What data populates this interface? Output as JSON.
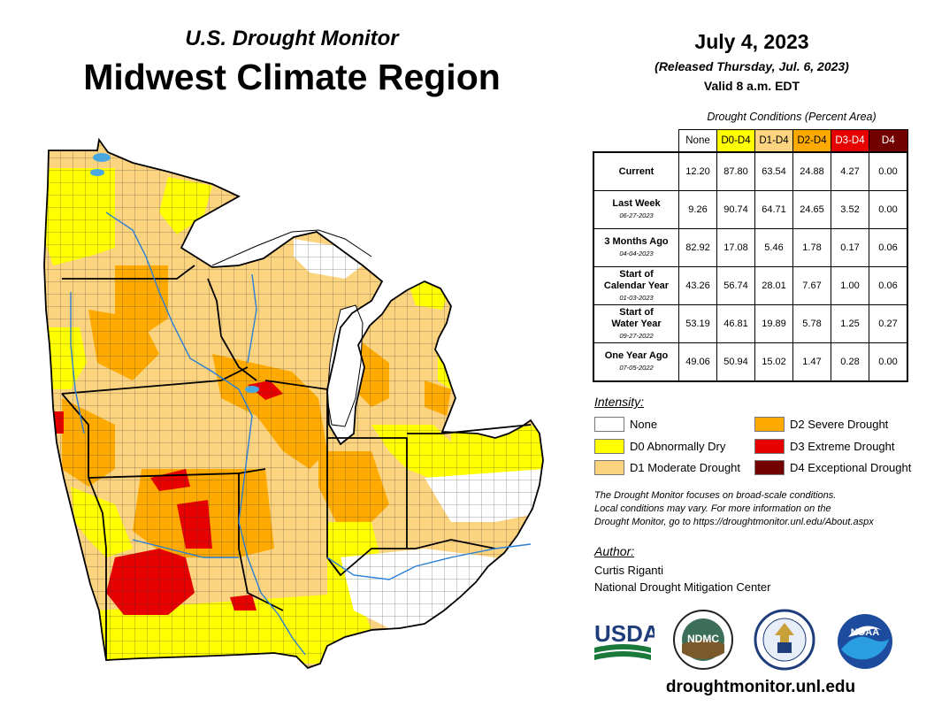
{
  "header": {
    "subtitle": "U.S. Drought Monitor",
    "title": "Midwest Climate Region",
    "date": "July 4, 2023",
    "released": "(Released Thursday, Jul. 6, 2023)",
    "valid": "Valid 8 a.m. EDT"
  },
  "table": {
    "caption": "Drought Conditions (Percent Area)",
    "columns": [
      {
        "label": "None",
        "color": "#ffffff",
        "text_color": "#000000"
      },
      {
        "label": "D0-D4",
        "color": "#ffff00",
        "text_color": "#000000"
      },
      {
        "label": "D1-D4",
        "color": "#fcd37f",
        "text_color": "#000000"
      },
      {
        "label": "D2-D4",
        "color": "#ffaa00",
        "text_color": "#000000"
      },
      {
        "label": "D3-D4",
        "color": "#e60000",
        "text_color": "#ffffff"
      },
      {
        "label": "D4",
        "color": "#730000",
        "text_color": "#ffffff"
      }
    ],
    "rows": [
      {
        "label": "Current",
        "label2": "",
        "date": "",
        "values": [
          "12.20",
          "87.80",
          "63.54",
          "24.88",
          "4.27",
          "0.00"
        ]
      },
      {
        "label": "Last Week",
        "label2": "",
        "date": "06-27-2023",
        "values": [
          "9.26",
          "90.74",
          "64.71",
          "24.65",
          "3.52",
          "0.00"
        ]
      },
      {
        "label": "3 Months Ago",
        "label2": "",
        "date": "04-04-2023",
        "values": [
          "82.92",
          "17.08",
          "5.46",
          "1.78",
          "0.17",
          "0.06"
        ]
      },
      {
        "label": "Start of",
        "label2": "Calendar Year",
        "date": "01-03-2023",
        "values": [
          "43.26",
          "56.74",
          "28.01",
          "7.67",
          "1.00",
          "0.06"
        ]
      },
      {
        "label": "Start of",
        "label2": "Water Year",
        "date": "09-27-2022",
        "values": [
          "53.19",
          "46.81",
          "19.89",
          "5.78",
          "1.25",
          "0.27"
        ]
      },
      {
        "label": "One Year Ago",
        "label2": "",
        "date": "07-05-2022",
        "values": [
          "49.06",
          "50.94",
          "15.02",
          "1.47",
          "0.28",
          "0.00"
        ]
      }
    ]
  },
  "legend": {
    "title": "Intensity:",
    "items": [
      {
        "label": "None",
        "color": "#ffffff"
      },
      {
        "label": "D0 Abnormally Dry",
        "color": "#ffff00"
      },
      {
        "label": "D1 Moderate Drought",
        "color": "#fcd37f"
      },
      {
        "label": "D2 Severe Drought",
        "color": "#ffaa00"
      },
      {
        "label": "D3 Extreme Drought",
        "color": "#e60000"
      },
      {
        "label": "D4 Exceptional Drought",
        "color": "#730000"
      }
    ]
  },
  "note": {
    "line1": "The Drought Monitor focuses on broad-scale conditions.",
    "line2": "Local conditions may vary. For more information on the",
    "line3": "Drought Monitor, go to https://droughtmonitor.unl.edu/About.aspx"
  },
  "author": {
    "title": "Author:",
    "name": "Curtis Riganti",
    "org": "National Drought Mitigation Center"
  },
  "logos": {
    "usda": "USDA",
    "ndmc": "NDMC",
    "noaa": "NOAA"
  },
  "footer": {
    "url": "droughtmonitor.unl.edu"
  }
}
